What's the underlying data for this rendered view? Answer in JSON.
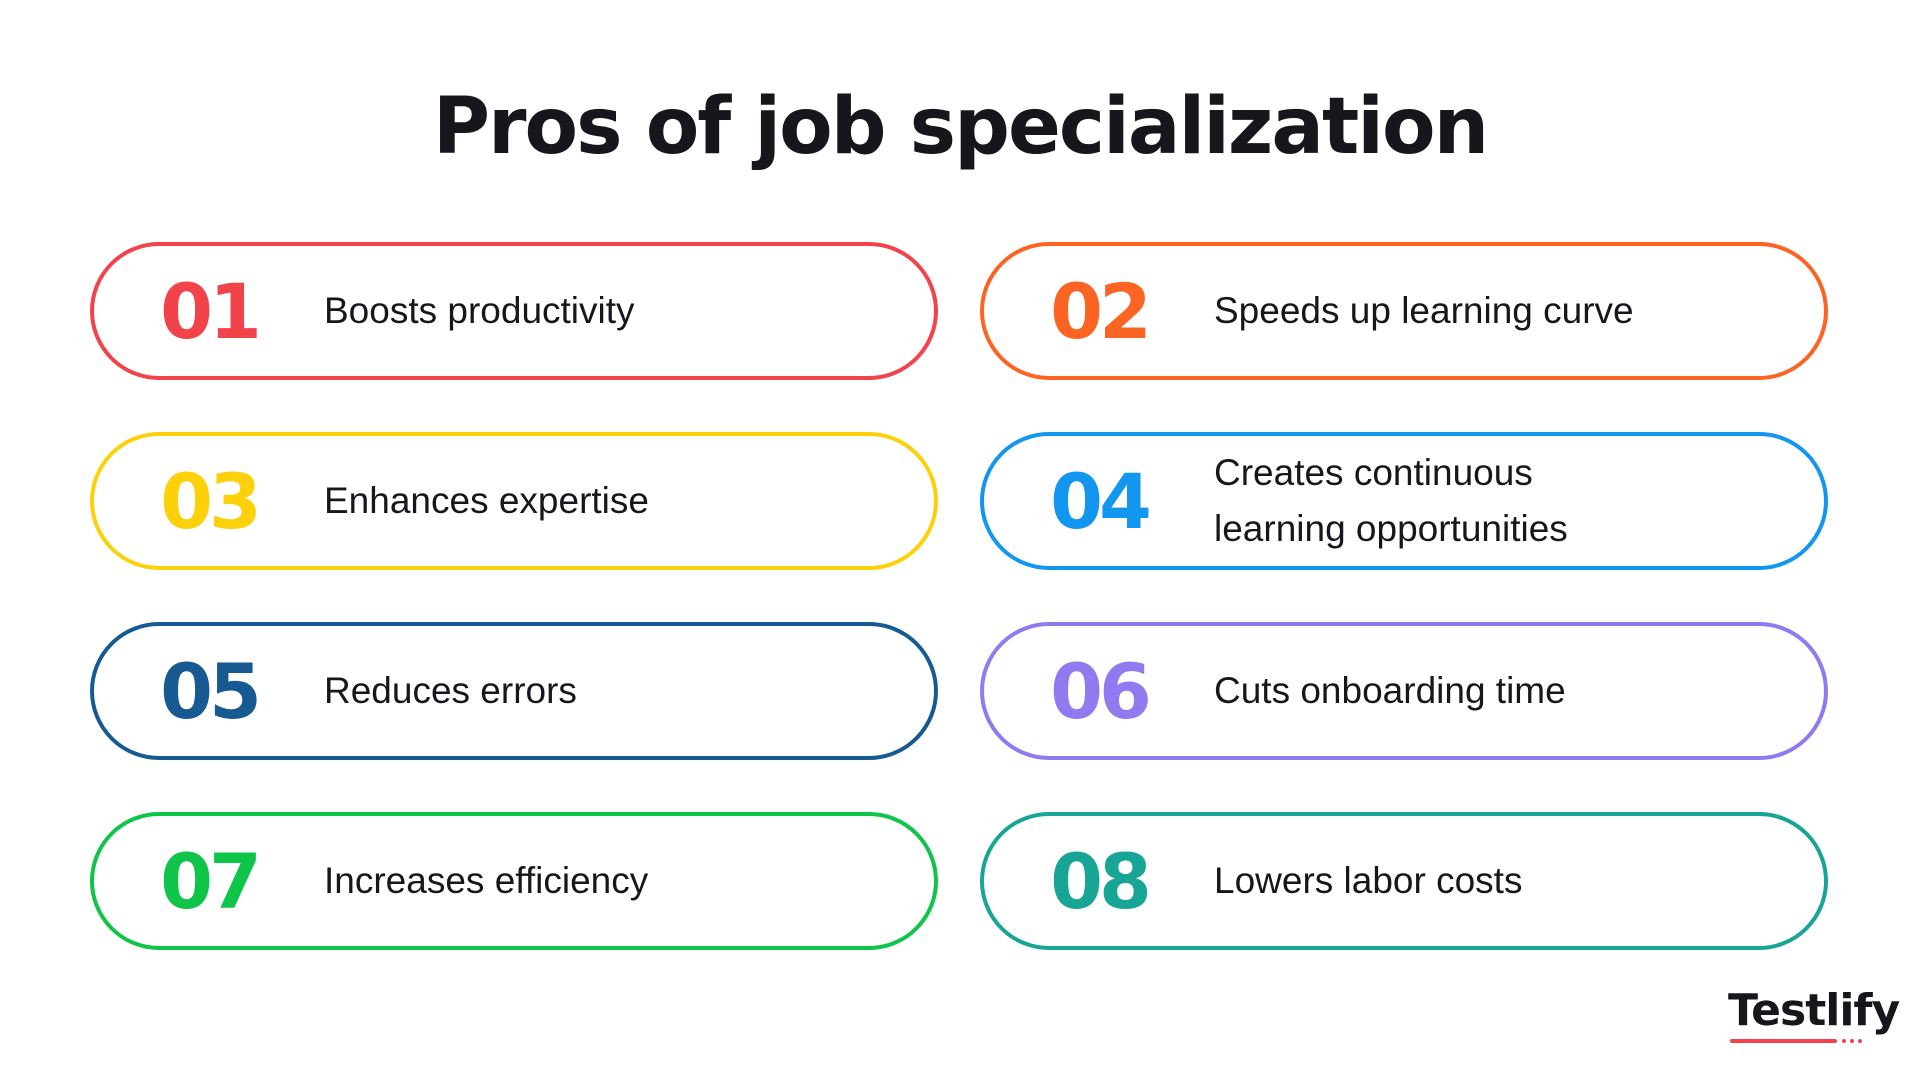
{
  "title": "Pros of job specialization",
  "items": [
    {
      "number": "01",
      "text": "Boosts productivity",
      "color": "#f2434a"
    },
    {
      "number": "02",
      "text": "Speeds up learning curve",
      "color": "#fb6422"
    },
    {
      "number": "03",
      "text": "Enhances expertise",
      "color": "#fdd10a"
    },
    {
      "number": "04",
      "text": "Creates continuous learning opportunities",
      "color": "#1296f0"
    },
    {
      "number": "05",
      "text": "Reduces errors",
      "color": "#175a91"
    },
    {
      "number": "06",
      "text": "Cuts onboarding time",
      "color": "#9179f0"
    },
    {
      "number": "07",
      "text": "Increases efficiency",
      "color": "#0fc549"
    },
    {
      "number": "08",
      "text": "Lowers labor costs",
      "color": "#19a596"
    }
  ],
  "logo": {
    "text": "Testlify",
    "accent": "#f2434a"
  }
}
